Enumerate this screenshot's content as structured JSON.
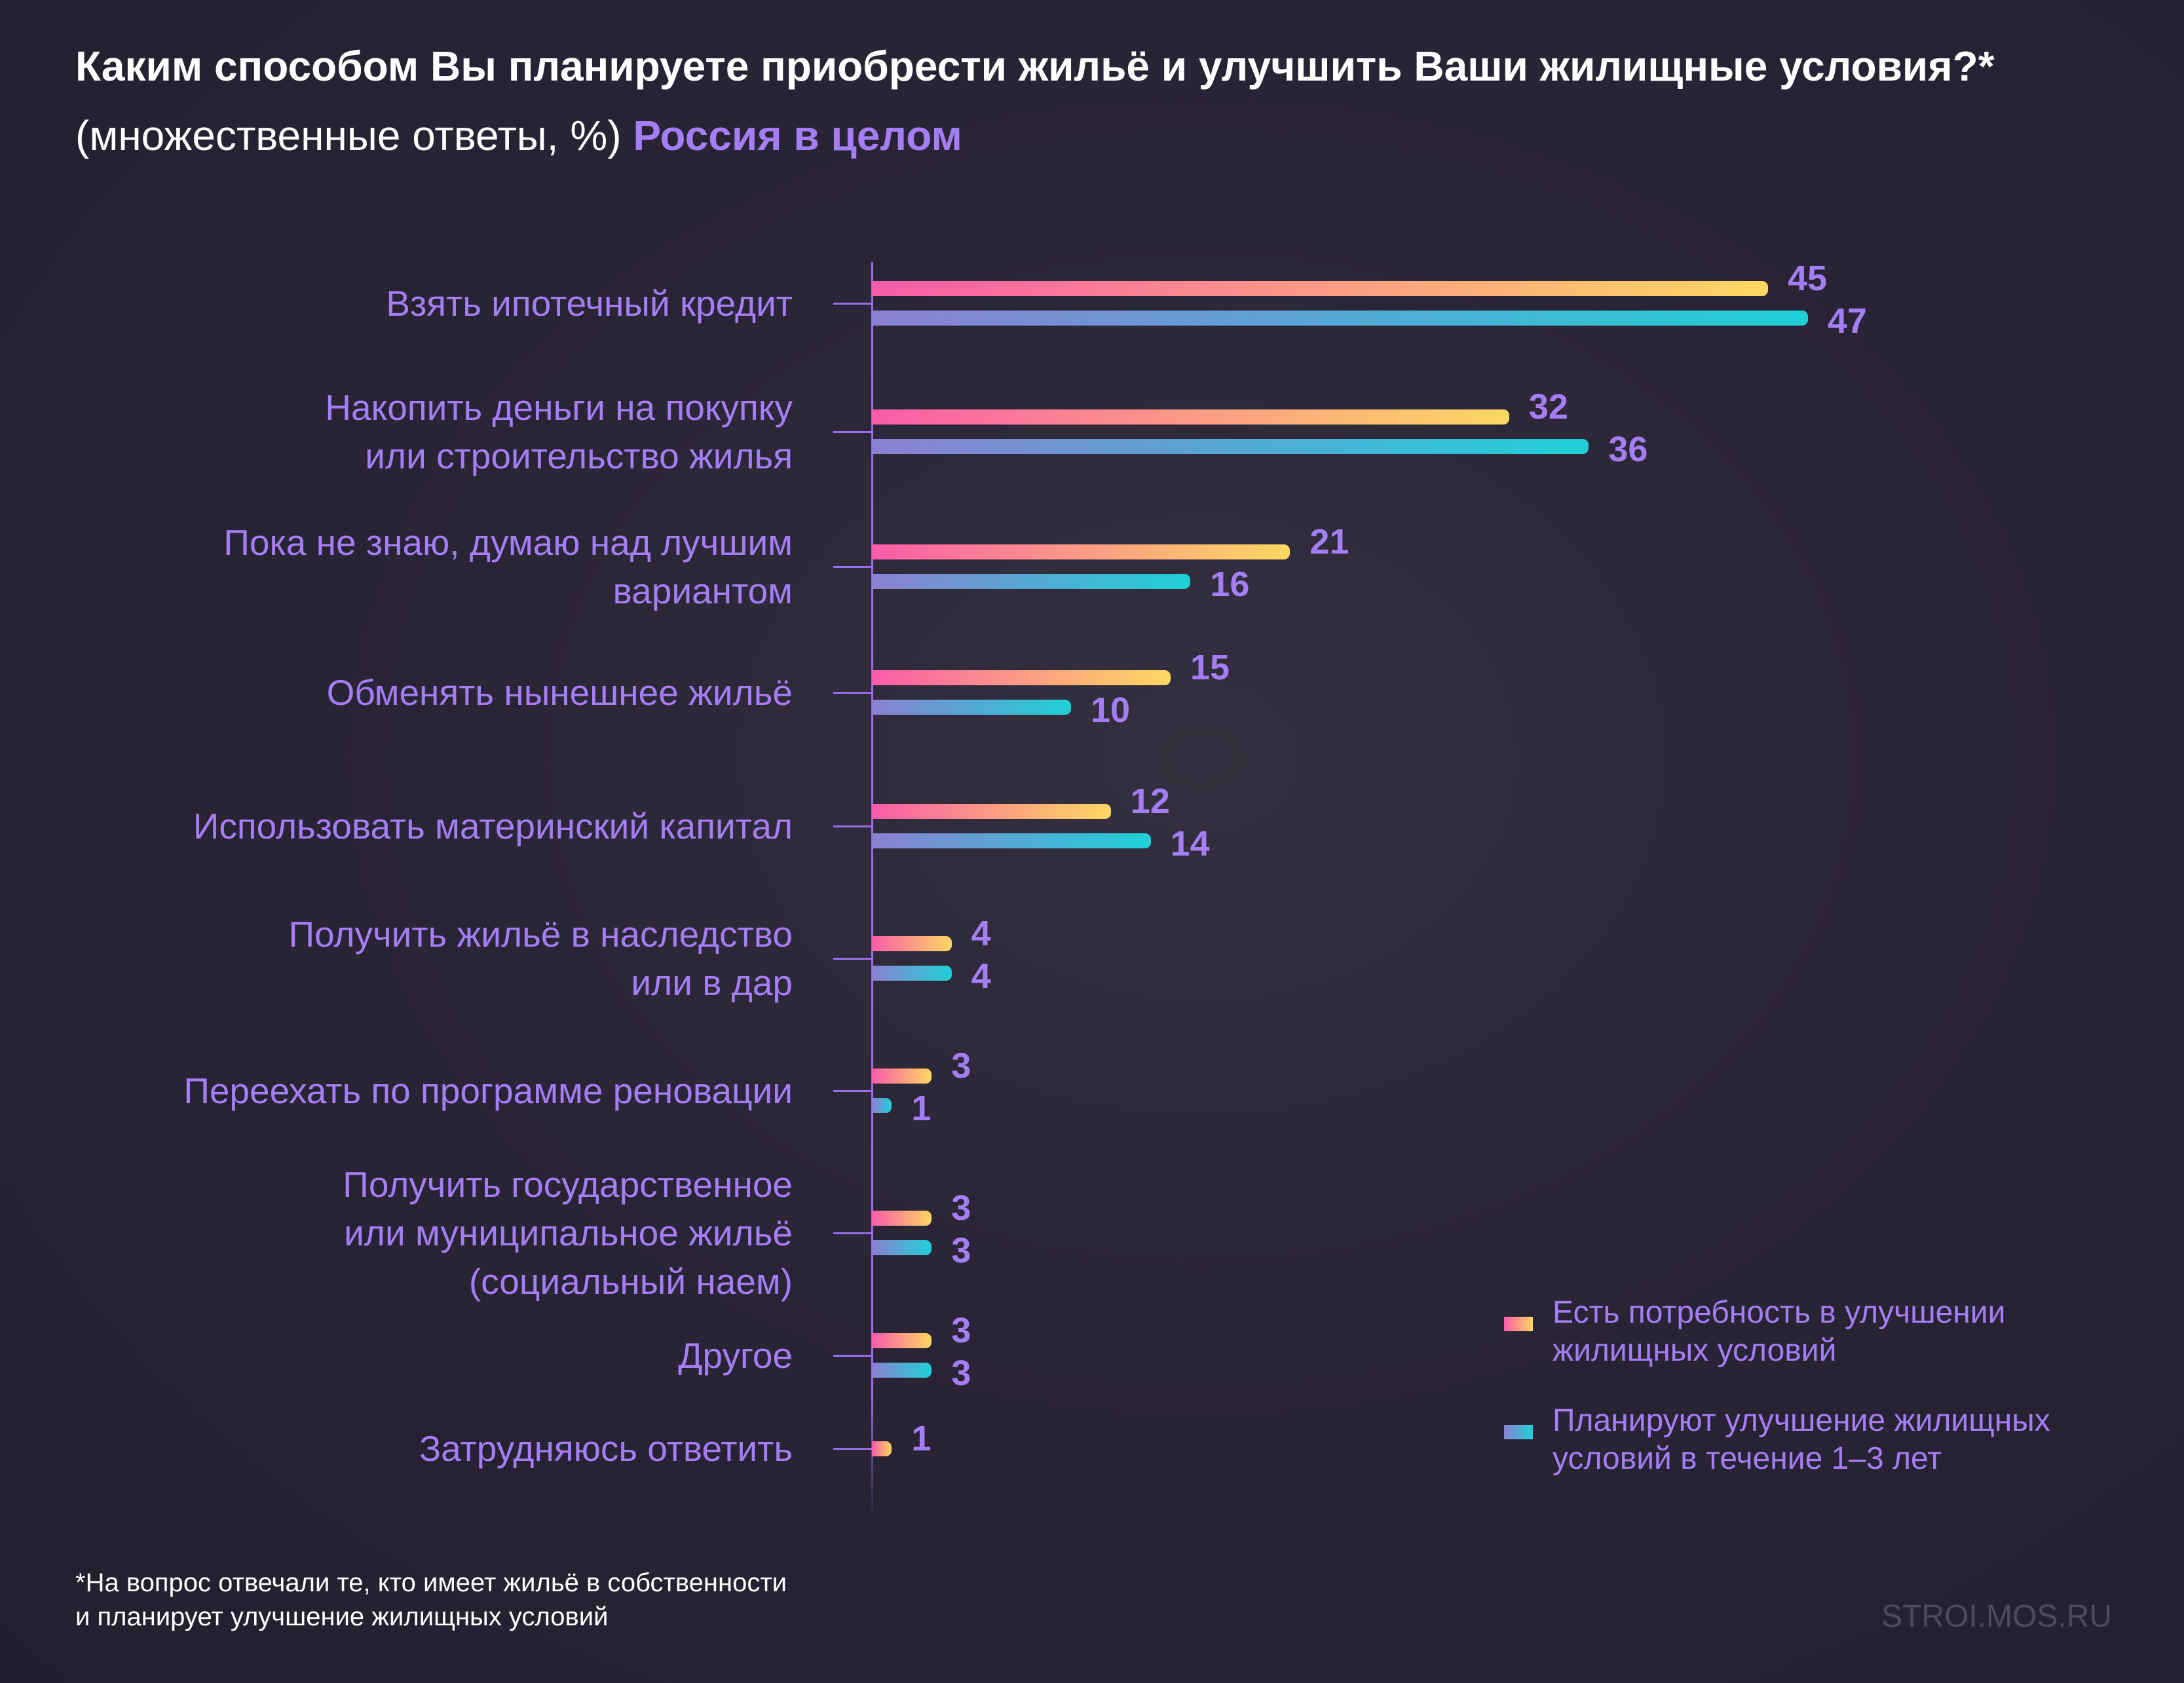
{
  "title": {
    "main": "Каким способом Вы планируете приобрести жильё и улучшить Ваши жилищные условия?*",
    "sub": "(множественные ответы, %)",
    "region": "Россия в целом"
  },
  "chart_data": {
    "type": "bar",
    "orientation": "horizontal",
    "categories": [
      "Взять ипотечный кредит",
      "Накопить деньги на покупку\nили строительство жилья",
      "Пока не знаю, думаю над лучшим\nвариантом",
      "Обменять нынешнее жильё",
      "Использовать материнский капитал",
      "Получить жильё в наследство\nили в дар",
      "Переехать по программе реновации",
      "Получить государственное\nили муниципальное жильё\n(социальный наем)",
      "Другое",
      "Затрудняюсь ответить"
    ],
    "series": [
      {
        "name": "Есть потребность в улучшении жилищных условий",
        "colors": [
          "#f95ca9",
          "#fdd862"
        ],
        "values": [
          45,
          32,
          21,
          15,
          12,
          4,
          3,
          3,
          3,
          1
        ]
      },
      {
        "name": "Планируют улучшение жилищных условий в течение 1–3 лет",
        "colors": [
          "#8b80d2",
          "#1fd0d8"
        ],
        "values": [
          47,
          36,
          16,
          10,
          14,
          4,
          1,
          3,
          3,
          null
        ]
      }
    ],
    "xlim": [
      0,
      47
    ],
    "grid": false,
    "legend": "bottom-right"
  },
  "legend": {
    "items": [
      "Есть потребность в улучшении жилищных условий",
      "Планируют улучшение жилищных условий в течение 1–3 лет"
    ]
  },
  "footnote": "*На вопрос отвечали те, кто имеет жильё в собственности\nи планирует улучшение жилищных условий",
  "watermark": "STROI.MOS.RU"
}
